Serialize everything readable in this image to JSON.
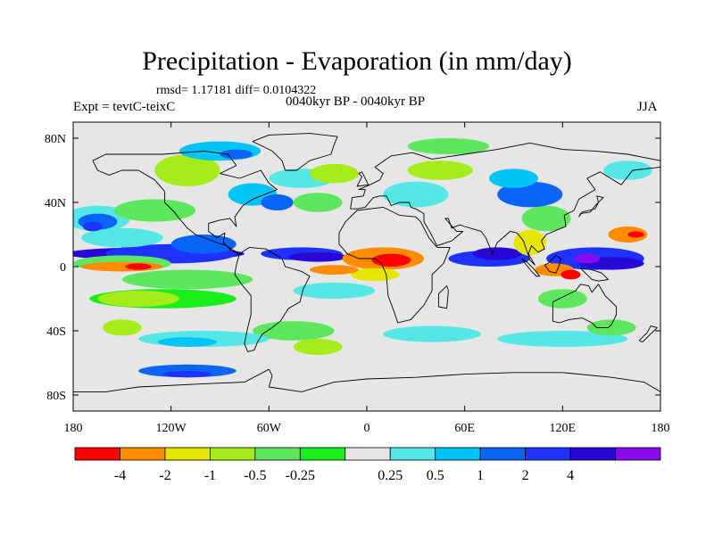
{
  "title": "Precipitation - Evaporation (in mm/day)",
  "stats": "rmsd= 1.17181 diff= 0.0104322",
  "period": "0040kyr BP - 0040kyr BP",
  "experiment": "Expt = tevtC-teixC",
  "season": "JJA",
  "map": {
    "projection": "cylindrical equidistant",
    "lon_range": [
      -180,
      180
    ],
    "lat_range": [
      -90,
      90
    ],
    "background_color": "#e6e6e6",
    "lon_ticks": [
      {
        "value": -180,
        "label": "180"
      },
      {
        "value": -120,
        "label": "120W"
      },
      {
        "value": -60,
        "label": "60W"
      },
      {
        "value": 0,
        "label": "0"
      },
      {
        "value": 60,
        "label": "60E"
      },
      {
        "value": 120,
        "label": "120E"
      },
      {
        "value": 180,
        "label": "180"
      }
    ],
    "lat_ticks": [
      {
        "value": 80,
        "label": "80N"
      },
      {
        "value": 40,
        "label": "40N"
      },
      {
        "value": 0,
        "label": "0"
      },
      {
        "value": -40,
        "label": "40S"
      },
      {
        "value": -80,
        "label": "80S"
      }
    ]
  },
  "colorbar": {
    "colors": [
      "#ff0000",
      "#ff8c00",
      "#e6e600",
      "#a6ec1a",
      "#5ee65e",
      "#1aee1a",
      "#e6e6e6",
      "#55e6e6",
      "#00c4f5",
      "#0a64f5",
      "#1e32ff",
      "#2808d6",
      "#8a0aee"
    ],
    "labels": [
      "-4",
      "-2",
      "-1",
      "-0.5",
      "-0.25",
      "0.25",
      "0.5",
      "1",
      "2",
      "4"
    ],
    "label_boundaries": [
      1,
      2,
      3,
      4,
      5,
      7,
      8,
      9,
      10,
      11
    ]
  }
}
